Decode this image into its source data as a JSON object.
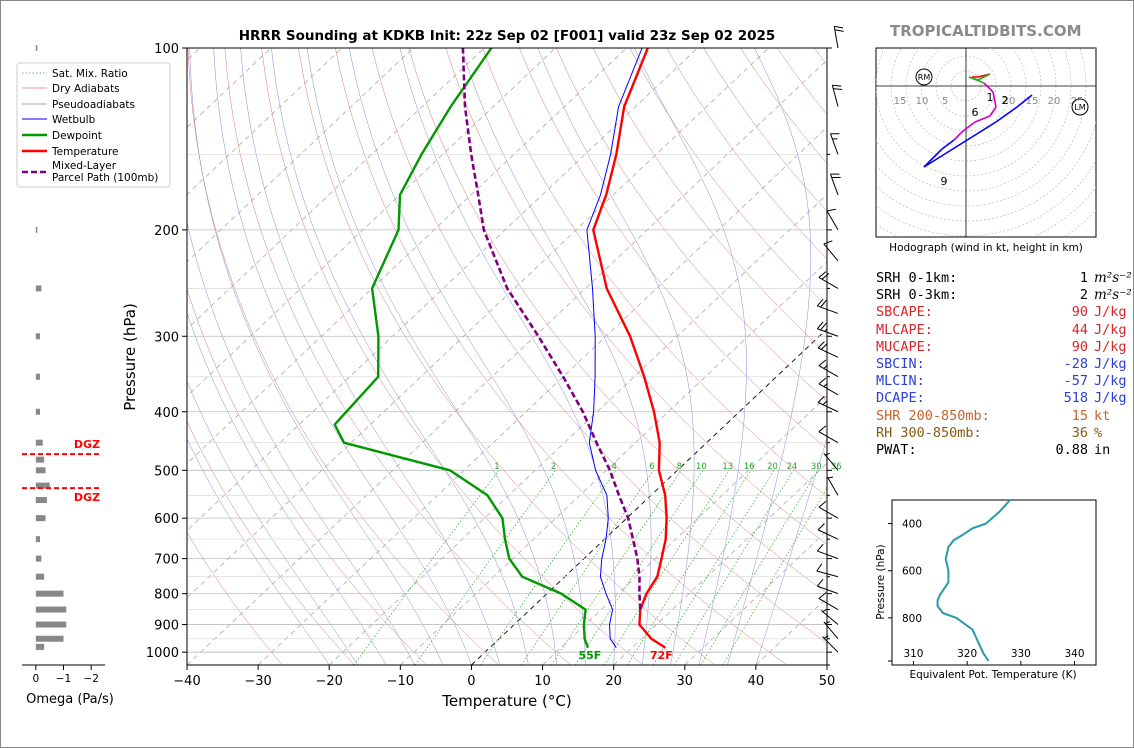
{
  "brand": "TROPICALTIDBITS.COM",
  "chart_data": {
    "type": "line",
    "title": "HRRR Sounding at KDKB Init: 22z Sep 02 [F001] valid 23z Sep 02 2025",
    "xlabel": "Temperature (°C)",
    "ylabel": "Pressure (hPa)",
    "xlim": [
      -40,
      50
    ],
    "ylim": [
      1050,
      100
    ],
    "y_scale": "log",
    "skew": "skew-T",
    "x_ticks": [
      "−40",
      "−30",
      "−20",
      "−10",
      "0",
      "10",
      "20",
      "30",
      "40",
      "50"
    ],
    "y_ticks": [
      "100",
      "200",
      "300",
      "400",
      "500",
      "600",
      "700",
      "800",
      "900",
      "1000"
    ],
    "legend": [
      "Sat. Mix. Ratio",
      "Dry Adiabats",
      "Pseudoadiabats",
      "Wetbulb",
      "Dewpoint",
      "Temperature",
      "Mixed-Layer Parcel Path (100mb)"
    ],
    "legend_position": "top-left",
    "mix_ratio_labels": [
      "1",
      "2",
      "4",
      "6",
      "8",
      "10",
      "13",
      "16",
      "20",
      "24",
      "30",
      "36"
    ],
    "surface_temp_label": "72F",
    "surface_dew_label": "55F",
    "series": [
      {
        "name": "Temperature",
        "color": "#ff0000",
        "points": [
          [
            983,
            24.7
          ],
          [
            950,
            21.4
          ],
          [
            900,
            17.6
          ],
          [
            850,
            15.5
          ],
          [
            800,
            14.0
          ],
          [
            750,
            13.0
          ],
          [
            700,
            10.9
          ],
          [
            650,
            8.6
          ],
          [
            600,
            5.6
          ],
          [
            550,
            2.0
          ],
          [
            500,
            -2.6
          ],
          [
            450,
            -6.6
          ],
          [
            400,
            -12.0
          ],
          [
            350,
            -18.6
          ],
          [
            300,
            -26.6
          ],
          [
            250,
            -37.0
          ],
          [
            200,
            -47.6
          ],
          [
            175,
            -51.0
          ],
          [
            150,
            -55.6
          ],
          [
            125,
            -61.6
          ],
          [
            100,
            -67.0
          ]
        ]
      },
      {
        "name": "Dewpoint",
        "color": "#009900",
        "points": [
          [
            983,
            13.8
          ],
          [
            950,
            12.0
          ],
          [
            900,
            9.8
          ],
          [
            850,
            7.8
          ],
          [
            800,
            2.0
          ],
          [
            750,
            -6.0
          ],
          [
            700,
            -10.5
          ],
          [
            650,
            -14.0
          ],
          [
            600,
            -17.5
          ],
          [
            550,
            -23.0
          ],
          [
            500,
            -32.0
          ],
          [
            450,
            -51.0
          ],
          [
            420,
            -55.0
          ],
          [
            350,
            -56.0
          ],
          [
            300,
            -62.0
          ],
          [
            250,
            -70.0
          ],
          [
            200,
            -75.0
          ],
          [
            175,
            -80.0
          ],
          [
            150,
            -83.0
          ],
          [
            125,
            -86.0
          ],
          [
            100,
            -89.0
          ]
        ]
      },
      {
        "name": "Wetbulb",
        "color": "#0000ff",
        "points": [
          [
            983,
            17.8
          ],
          [
            950,
            15.6
          ],
          [
            900,
            13.4
          ],
          [
            850,
            11.6
          ],
          [
            800,
            8.3
          ],
          [
            750,
            5.0
          ],
          [
            700,
            2.5
          ],
          [
            650,
            0.2
          ],
          [
            600,
            -2.6
          ],
          [
            550,
            -6.2
          ],
          [
            500,
            -11.5
          ],
          [
            450,
            -16.5
          ],
          [
            400,
            -20.5
          ],
          [
            350,
            -25.5
          ],
          [
            300,
            -31.5
          ],
          [
            250,
            -39.0
          ],
          [
            200,
            -48.5
          ],
          [
            175,
            -51.8
          ],
          [
            150,
            -56.4
          ],
          [
            125,
            -62.4
          ],
          [
            100,
            -67.8
          ]
        ]
      },
      {
        "name": "Mixed-Layer Parcel Path (100mb)",
        "color": "#7f007f",
        "points": [
          [
            850,
            15.5
          ],
          [
            800,
            13.0
          ],
          [
            750,
            10.5
          ],
          [
            700,
            7.5
          ],
          [
            650,
            4.0
          ],
          [
            600,
            0.2
          ],
          [
            550,
            -4.5
          ],
          [
            500,
            -9.5
          ],
          [
            450,
            -15.5
          ],
          [
            400,
            -22.0
          ],
          [
            350,
            -30.0
          ],
          [
            300,
            -39.5
          ],
          [
            250,
            -51.0
          ],
          [
            200,
            -63.0
          ],
          [
            175,
            -69.0
          ],
          [
            150,
            -76.0
          ],
          [
            125,
            -84.0
          ],
          [
            100,
            -93.0
          ]
        ]
      }
    ],
    "dgz_top_label": "DGZ",
    "dgz_bottom_label": "DGZ",
    "omega": {
      "xlabel": "Omega (Pa/s)",
      "x_ticks": [
        "0",
        "−1",
        "−2"
      ],
      "xlim": [
        0.5,
        -2.5
      ],
      "dgz_levels": [
        470,
        535
      ],
      "values": [
        [
          100,
          -0.05
        ],
        [
          150,
          -0.05
        ],
        [
          200,
          -0.05
        ],
        [
          250,
          -0.2
        ],
        [
          300,
          -0.15
        ],
        [
          350,
          -0.15
        ],
        [
          400,
          -0.15
        ],
        [
          450,
          -0.25
        ],
        [
          480,
          -0.3
        ],
        [
          500,
          -0.35
        ],
        [
          530,
          -0.5
        ],
        [
          560,
          -0.4
        ],
        [
          600,
          -0.35
        ],
        [
          650,
          -0.15
        ],
        [
          700,
          -0.2
        ],
        [
          750,
          -0.3
        ],
        [
          800,
          -1.0
        ],
        [
          850,
          -1.1
        ],
        [
          900,
          -1.1
        ],
        [
          950,
          -1.0
        ],
        [
          980,
          -0.3
        ]
      ]
    }
  },
  "hodograph": {
    "caption": "Hodograph (wind in kt, height in km)",
    "ring_labels_left": [
      "15",
      "10",
      "5"
    ],
    "ring_labels_right": [
      "20",
      "15",
      "20",
      "25"
    ],
    "rm_label": "RM",
    "lm_label": "LM",
    "height_labels": [
      "1",
      "2",
      "6",
      "9"
    ],
    "trace_kt": [
      [
        2,
        3
      ],
      [
        4,
        3
      ],
      [
        8,
        4
      ],
      [
        4,
        2
      ],
      [
        1,
        3
      ],
      [
        6,
        1
      ],
      [
        9,
        -2
      ],
      [
        10,
        -7
      ],
      [
        8,
        -10
      ],
      [
        3,
        -12
      ],
      [
        -1,
        -15
      ],
      [
        -4,
        -18
      ],
      [
        -8,
        -21
      ],
      [
        -14,
        -27
      ],
      [
        2,
        -17
      ],
      [
        10,
        -12
      ],
      [
        17,
        -7
      ],
      [
        22,
        -3
      ]
    ],
    "rm_kt": [
      -14,
      3
    ],
    "lm_kt": [
      38,
      -7
    ]
  },
  "params": [
    {
      "label": "SRH 0-1km:",
      "value": "1",
      "unit": "m²s⁻²",
      "color": "#000000"
    },
    {
      "label": "SRH 0-3km:",
      "value": "2",
      "unit": "m²s⁻²",
      "color": "#000000"
    },
    {
      "label": "SBCAPE:",
      "value": "90",
      "unit": "J/kg",
      "color": "#d62728"
    },
    {
      "label": "MLCAPE:",
      "value": "44",
      "unit": "J/kg",
      "color": "#d62728"
    },
    {
      "label": "MUCAPE:",
      "value": "90",
      "unit": "J/kg",
      "color": "#d62728"
    },
    {
      "label": "SBCIN:",
      "value": "-28",
      "unit": "J/kg",
      "color": "#2c3ed6"
    },
    {
      "label": "MLCIN:",
      "value": "-57",
      "unit": "J/kg",
      "color": "#2c3ed6"
    },
    {
      "label": "DCAPE:",
      "value": "518",
      "unit": "J/kg",
      "color": "#2c3ed6"
    },
    {
      "label": "SHR 200-850mb:",
      "value": "15",
      "unit": "kt",
      "color": "#c8622a"
    },
    {
      "label": "RH 300-850mb:",
      "value": "36",
      "unit": "%",
      "color": "#8a5a14"
    },
    {
      "label": "PWAT:",
      "value": "0.88",
      "unit": "in",
      "color": "#000000"
    }
  ],
  "theta_e": {
    "xlabel": "Equivalent Pot. Temperature (K)",
    "ylabel": "Pressure (hPa)",
    "x_ticks": [
      "310",
      "320",
      "330",
      "340"
    ],
    "y_ticks": [
      "400",
      "600",
      "800"
    ],
    "xlim": [
      306,
      344
    ],
    "ylim": [
      1000,
      300
    ],
    "points": [
      [
        983,
        324
      ],
      [
        950,
        323
      ],
      [
        900,
        322
      ],
      [
        850,
        321
      ],
      [
        800,
        318
      ],
      [
        780,
        315.5
      ],
      [
        750,
        314.5
      ],
      [
        725,
        314.5
      ],
      [
        700,
        315
      ],
      [
        650,
        316.5
      ],
      [
        600,
        316.5
      ],
      [
        550,
        316
      ],
      [
        500,
        316.5
      ],
      [
        470,
        317.5
      ],
      [
        450,
        319
      ],
      [
        420,
        321
      ],
      [
        400,
        323.5
      ],
      [
        350,
        326
      ],
      [
        300,
        328
      ]
    ],
    "color": "#2a9aa8"
  },
  "winds_barbs": [
    {
      "p": 100,
      "dir": 350,
      "spd": 20
    },
    {
      "p": 125,
      "dir": 345,
      "spd": 20
    },
    {
      "p": 150,
      "dir": 340,
      "spd": 15
    },
    {
      "p": 175,
      "dir": 340,
      "spd": 20
    },
    {
      "p": 200,
      "dir": 330,
      "spd": 10
    },
    {
      "p": 225,
      "dir": 320,
      "spd": 10
    },
    {
      "p": 250,
      "dir": 300,
      "spd": 20
    },
    {
      "p": 275,
      "dir": 290,
      "spd": 20
    },
    {
      "p": 300,
      "dir": 290,
      "spd": 20
    },
    {
      "p": 325,
      "dir": 295,
      "spd": 20
    },
    {
      "p": 350,
      "dir": 300,
      "spd": 15
    },
    {
      "p": 375,
      "dir": 300,
      "spd": 15
    },
    {
      "p": 400,
      "dir": 295,
      "spd": 15
    },
    {
      "p": 450,
      "dir": 300,
      "spd": 10
    },
    {
      "p": 500,
      "dir": 320,
      "spd": 5
    },
    {
      "p": 550,
      "dir": 330,
      "spd": 5
    },
    {
      "p": 600,
      "dir": 300,
      "spd": 10
    },
    {
      "p": 650,
      "dir": 295,
      "spd": 10
    },
    {
      "p": 700,
      "dir": 290,
      "spd": 10
    },
    {
      "p": 750,
      "dir": 285,
      "spd": 10
    },
    {
      "p": 800,
      "dir": 290,
      "spd": 10
    },
    {
      "p": 850,
      "dir": 300,
      "spd": 10
    },
    {
      "p": 900,
      "dir": 310,
      "spd": 5
    },
    {
      "p": 950,
      "dir": 320,
      "spd": 5
    },
    {
      "p": 1000,
      "dir": 315,
      "spd": 5
    }
  ]
}
